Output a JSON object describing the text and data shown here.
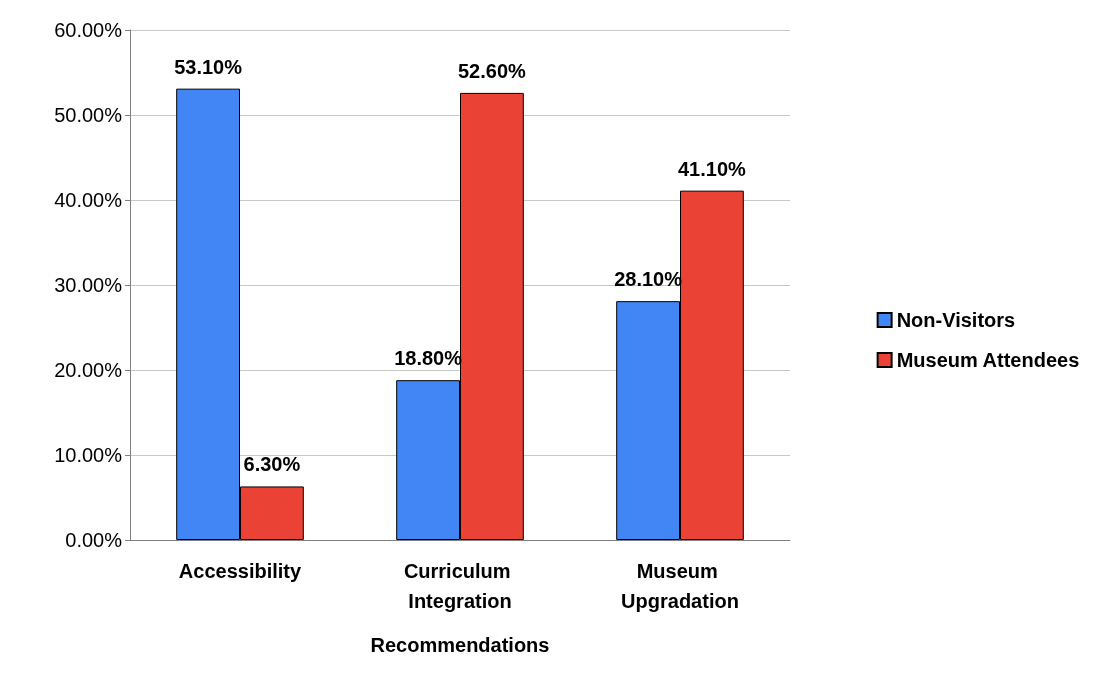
{
  "chart_data": {
    "type": "bar",
    "xlabel": "Recommendations",
    "categories": [
      "Accessibility",
      "Curriculum Integration",
      "Museum Upgradation"
    ],
    "series": [
      {
        "name": "Non-Visitors",
        "color": "#4285f4",
        "values": [
          53.1,
          18.8,
          28.1
        ],
        "value_labels": [
          "53.10%",
          "18.80%",
          "28.10%"
        ]
      },
      {
        "name": "Museum Attendees",
        "color": "#ea4335",
        "values": [
          6.3,
          52.6,
          41.1
        ],
        "value_labels": [
          "6.30%",
          "52.60%",
          "41.10%"
        ]
      }
    ],
    "ylim": [
      0,
      60
    ],
    "yticks": [
      {
        "value": 0,
        "label": "0.00%"
      },
      {
        "value": 10,
        "label": "10.00%"
      },
      {
        "value": 20,
        "label": "20.00%"
      },
      {
        "value": 30,
        "label": "30.00%"
      },
      {
        "value": 40,
        "label": "40.00%"
      },
      {
        "value": 50,
        "label": "50.00%"
      },
      {
        "value": 60,
        "label": "60.00%"
      }
    ],
    "grid": "y",
    "legend": "right"
  }
}
